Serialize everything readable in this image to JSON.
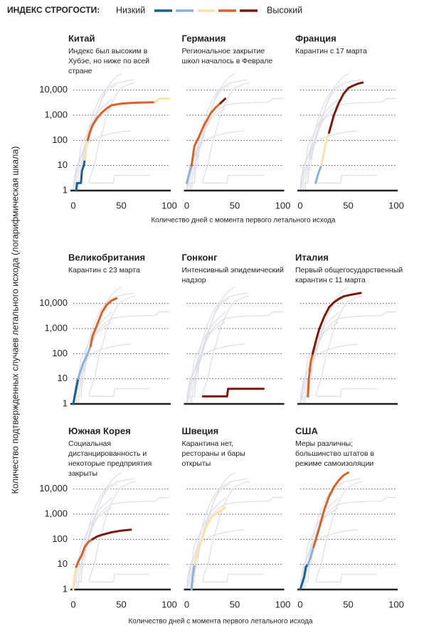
{
  "legend": {
    "title": "ИНДЕКС СТРОГОСТИ:",
    "low": "Низкий",
    "high": "Высокий",
    "colors": [
      "#1f5f8b",
      "#8fb0d8",
      "#f8e2ae",
      "#d9622b",
      "#7a1a0e"
    ]
  },
  "y_label": "Количество подтвержденных случаев летального исхода (логарифмическая шкала)",
  "x_label": "Количество дней с момента первого летального исхода",
  "chart_data": [
    {
      "type": "line",
      "title": "Китай",
      "subtitle": [
        "Индекс был высоким в",
        "Хубэе, но ниже по всей",
        "стране"
      ],
      "log": true,
      "grid": true,
      "xlim": [
        0,
        100
      ],
      "ylim": [
        1,
        50000
      ],
      "xticks": [
        0,
        50,
        100
      ],
      "yticks": [
        1,
        10,
        100,
        {
          "value": 1000,
          "label": "1,000"
        },
        {
          "value": 10000,
          "label": "10,000"
        }
      ],
      "ytick_labels": true,
      "segments": [
        {
          "level": 0,
          "x": [
            3,
            4,
            8,
            9,
            11,
            12
          ],
          "values": [
            1,
            2,
            2,
            6,
            10,
            17
          ]
        },
        {
          "level": 2,
          "x": [
            12,
            13,
            15
          ],
          "values": [
            17,
            40,
            100
          ]
        },
        {
          "level": 3,
          "x": [
            15,
            17,
            20,
            25,
            30,
            35,
            40,
            50,
            60,
            70,
            85
          ],
          "values": [
            100,
            200,
            400,
            800,
            1300,
            1900,
            2500,
            2900,
            3100,
            3200,
            3300
          ]
        },
        {
          "level": 2,
          "x": [
            85,
            90,
            100
          ],
          "values": [
            3300,
            4600,
            4600
          ]
        }
      ]
    },
    {
      "type": "line",
      "title": "Германия",
      "subtitle": [
        "Региональное закрытие",
        "школ началось в Феврале"
      ],
      "log": true,
      "grid": true,
      "xlim": [
        0,
        100
      ],
      "ylim": [
        1,
        50000
      ],
      "xticks": [
        0,
        50,
        100
      ],
      "yticks": [
        1,
        10,
        100,
        1000,
        10000
      ],
      "ytick_labels": false,
      "segments": [
        {
          "level": 1,
          "x": [
            0,
            2,
            5
          ],
          "values": [
            2,
            4,
            10
          ]
        },
        {
          "level": 3,
          "x": [
            5,
            8,
            12,
            18,
            25,
            30,
            35
          ],
          "values": [
            10,
            60,
            120,
            400,
            1200,
            2000,
            3000
          ]
        },
        {
          "level": 4,
          "x": [
            35,
            40
          ],
          "values": [
            3000,
            4500
          ]
        }
      ]
    },
    {
      "type": "line",
      "title": "Франция",
      "subtitle": [
        "Карантин с 17 марта"
      ],
      "log": true,
      "grid": true,
      "xlim": [
        0,
        100
      ],
      "ylim": [
        1,
        50000
      ],
      "xticks": [
        0,
        50,
        100
      ],
      "yticks": [
        1,
        10,
        100,
        1000,
        10000
      ],
      "ytick_labels": false,
      "segments": [
        {
          "level": 1,
          "x": [
            16,
            19,
            22
          ],
          "values": [
            2,
            5,
            10
          ]
        },
        {
          "level": 2,
          "x": [
            22,
            25,
            28,
            30
          ],
          "values": [
            10,
            40,
            120,
            200
          ]
        },
        {
          "level": 4,
          "x": [
            30,
            35,
            40,
            45,
            50,
            55,
            60,
            65
          ],
          "values": [
            200,
            1000,
            3000,
            7000,
            12000,
            15000,
            18000,
            20000
          ]
        }
      ]
    },
    {
      "type": "line",
      "title": "Великобритания",
      "subtitle": [
        "Карантин с 23 марта"
      ],
      "log": true,
      "grid": true,
      "xlim": [
        0,
        100
      ],
      "ylim": [
        1,
        50000
      ],
      "yticks": [
        1,
        10,
        100,
        {
          "value": 1000,
          "label": "1,000"
        },
        {
          "value": 10000,
          "label": "10,000"
        }
      ],
      "ytick_labels": true,
      "segments": [
        {
          "level": 0,
          "x": [
            0,
            3,
            5
          ],
          "values": [
            1,
            4,
            10
          ]
        },
        {
          "level": 1,
          "x": [
            5,
            10,
            15,
            18
          ],
          "values": [
            10,
            40,
            100,
            200
          ]
        },
        {
          "level": 3,
          "x": [
            18,
            20,
            25,
            30,
            35,
            40,
            45
          ],
          "values": [
            200,
            500,
            1500,
            4500,
            9000,
            13000,
            16000
          ]
        }
      ]
    },
    {
      "type": "line",
      "title": "Гонконг",
      "subtitle": [
        "Интенсивный эпидемический",
        "надзор"
      ],
      "log": true,
      "grid": true,
      "xlim": [
        0,
        100
      ],
      "ylim": [
        1,
        50000
      ],
      "yticks": [
        1,
        10,
        100,
        1000,
        10000
      ],
      "ytick_labels": false,
      "segments": [
        {
          "level": 4,
          "x": [
            17,
            42,
            43,
            80
          ],
          "values": [
            2,
            2,
            4,
            4
          ]
        }
      ]
    },
    {
      "type": "line",
      "title": "Италия",
      "subtitle": [
        "Первый общегосударственный",
        "карантин с 11 марта"
      ],
      "log": true,
      "grid": true,
      "xlim": [
        0,
        100
      ],
      "ylim": [
        1,
        50000
      ],
      "yticks": [
        1,
        10,
        100,
        1000,
        10000
      ],
      "ytick_labels": false,
      "segments": [
        {
          "level": 3,
          "x": [
            8,
            9,
            11,
            13
          ],
          "values": [
            2,
            10,
            50,
            100
          ]
        },
        {
          "level": 4,
          "x": [
            13,
            17,
            20,
            25,
            30,
            35,
            40,
            45,
            50,
            55,
            63
          ],
          "values": [
            100,
            400,
            1000,
            3000,
            7000,
            11000,
            15000,
            19000,
            21000,
            23000,
            26000
          ]
        }
      ]
    },
    {
      "type": "line",
      "title": "Южная Корея",
      "subtitle": [
        "Социальная",
        "дистанцированность и",
        "некоторые предприятия",
        "закрыты"
      ],
      "log": true,
      "grid": true,
      "xlim": [
        0,
        100
      ],
      "ylim": [
        1,
        50000
      ],
      "xticks": [
        0,
        50,
        100
      ],
      "yticks": [
        1,
        10,
        100,
        {
          "value": 1000,
          "label": "1,000"
        },
        {
          "value": 10000,
          "label": "10,000"
        }
      ],
      "ytick_labels": true,
      "segments": [
        {
          "level": 2,
          "x": [
            0,
            1,
            3
          ],
          "values": [
            1,
            3,
            8
          ]
        },
        {
          "level": 3,
          "x": [
            3,
            6,
            8,
            12,
            16,
            20
          ],
          "values": [
            8,
            15,
            20,
            50,
            80,
            100
          ]
        },
        {
          "level": 4,
          "x": [
            20,
            25,
            30,
            40,
            50,
            60
          ],
          "values": [
            100,
            130,
            150,
            190,
            220,
            240
          ]
        }
      ]
    },
    {
      "type": "line",
      "title": "Швеция",
      "subtitle": [
        "Карантина нет,",
        "рестораны и бары",
        "открыты"
      ],
      "log": true,
      "grid": true,
      "xlim": [
        0,
        100
      ],
      "ylim": [
        1,
        50000
      ],
      "xticks": [
        0,
        50,
        100
      ],
      "yticks": [
        1,
        10,
        100,
        1000,
        10000
      ],
      "ytick_labels": false,
      "segments": [
        {
          "level": 1,
          "x": [
            5,
            6,
            8
          ],
          "values": [
            1,
            3,
            10
          ]
        },
        {
          "level": 2,
          "x": [
            8,
            12,
            16,
            20,
            25,
            30,
            35,
            40
          ],
          "values": [
            10,
            40,
            100,
            300,
            700,
            1000,
            1400,
            1800
          ]
        }
      ]
    },
    {
      "type": "line",
      "title": "США",
      "subtitle": [
        "Меры различны;",
        "большинство штатов в",
        "режиме самоизоляции"
      ],
      "log": true,
      "grid": true,
      "xlim": [
        0,
        100
      ],
      "ylim": [
        1,
        50000
      ],
      "xticks": [
        0,
        50,
        100
      ],
      "yticks": [
        1,
        10,
        100,
        1000,
        10000
      ],
      "ytick_labels": false,
      "segments": [
        {
          "level": 0,
          "x": [
            0,
            4,
            6,
            8
          ],
          "values": [
            1,
            3,
            8,
            10
          ]
        },
        {
          "level": 1,
          "x": [
            8,
            11,
            14
          ],
          "values": [
            10,
            20,
            50
          ]
        },
        {
          "level": 3,
          "x": [
            14,
            20,
            25,
            30,
            35,
            40,
            45,
            50
          ],
          "values": [
            50,
            300,
            1500,
            5000,
            12000,
            22000,
            35000,
            45000
          ]
        }
      ]
    }
  ]
}
